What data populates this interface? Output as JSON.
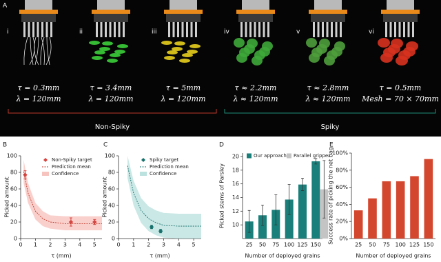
{
  "panel_a": {
    "label": "A",
    "photos": [
      {
        "numeral": "i",
        "lines": [
          "τ = 0.3mm",
          "λ = 120mm"
        ]
      },
      {
        "numeral": "ii",
        "lines": [
          "τ = 3.4mm",
          "λ = 120mm"
        ]
      },
      {
        "numeral": "iii",
        "lines": [
          "τ = 5mm",
          "λ = 120mm"
        ]
      },
      {
        "numeral": "iv",
        "lines": [
          "τ ≈ 2.2mm",
          "λ ≈ 120mm"
        ]
      },
      {
        "numeral": "v",
        "lines": [
          "τ ≈ 2.8mm",
          "λ ≈ 120mm"
        ]
      },
      {
        "numeral": "vi",
        "lines": [
          "τ = 0.5mm",
          "Mesh = 70 × 70mm"
        ]
      }
    ],
    "groups": [
      "Non-Spiky",
      "Spiky"
    ]
  },
  "chart_data": [
    {
      "type": "scatter",
      "panel": "B",
      "xlabel": "τ (mm)",
      "ylabel": "Picked amount",
      "xlim": [
        0,
        5.5
      ],
      "xticks": [
        0,
        1,
        2,
        3,
        4,
        5
      ],
      "ylim": [
        0,
        100
      ],
      "yticks": [
        0,
        20,
        40,
        60,
        80,
        100
      ],
      "series": [
        {
          "name": "Non-Spiky target",
          "color": "#d64541",
          "x": [
            0.3,
            3.4,
            5
          ],
          "values": [
            77,
            20,
            20
          ],
          "errors": [
            5,
            5,
            3
          ]
        },
        {
          "name": "Prediction mean",
          "color": "#c0392b",
          "x": [
            0.2,
            0.5,
            1,
            1.5,
            2,
            3,
            4,
            5.5
          ],
          "values": [
            81,
            55,
            33,
            24,
            20,
            18,
            18,
            18
          ]
        },
        {
          "name": "Confidence",
          "color": "#f4a9a3",
          "x": [
            0.2,
            0.5,
            1,
            1.5,
            2,
            3,
            4,
            5.5
          ],
          "upper": [
            95,
            67,
            43,
            33,
            28,
            27,
            27,
            27
          ],
          "lower": [
            67,
            43,
            23,
            15,
            12,
            10,
            10,
            10
          ]
        }
      ]
    },
    {
      "type": "scatter",
      "panel": "C",
      "xlabel": "τ (mm)",
      "ylabel": "Picked amount",
      "xlim": [
        0,
        5.5
      ],
      "xticks": [
        0,
        1,
        2,
        3,
        4,
        5
      ],
      "ylim": [
        0,
        100
      ],
      "yticks": [
        0,
        20,
        40,
        60,
        80,
        100
      ],
      "series": [
        {
          "name": "Spiky target",
          "color": "#17706b",
          "x": [
            2.2,
            2.8
          ],
          "values": [
            14,
            9
          ],
          "errors": [
            2,
            2
          ]
        },
        {
          "name": "Prediction mean",
          "color": "#17706b",
          "x": [
            0.6,
            1,
            1.5,
            2,
            2.5,
            3,
            4,
            5.5
          ],
          "values": [
            88,
            55,
            34,
            24,
            19,
            16,
            15,
            15
          ]
        },
        {
          "name": "Confidence",
          "color": "#9fd6d2",
          "x": [
            0.6,
            1,
            1.5,
            2,
            2.5,
            3,
            4,
            5.5
          ],
          "upper": [
            100,
            70,
            49,
            39,
            34,
            31,
            30,
            30
          ],
          "lower": [
            73,
            40,
            19,
            9,
            4,
            1,
            0,
            0
          ]
        }
      ]
    },
    {
      "type": "bar",
      "panel": "D",
      "xlabel": "Number of deployed grains",
      "ylabel": "Picked stems of Parsley",
      "categories": [
        "25",
        "50",
        "75",
        "100",
        "125",
        "150"
      ],
      "ylim": [
        8,
        20.5
      ],
      "yticks": [
        10,
        12,
        14,
        16,
        18,
        20
      ],
      "series": [
        {
          "name": "Our approach",
          "color": "#1a7f7a",
          "values": [
            10.5,
            11.4,
            12.2,
            13.7,
            15.9,
            19.3
          ],
          "errors": [
            1.6,
            1.5,
            2.2,
            2.2,
            0.9,
            0.4
          ]
        },
        {
          "name": "Parallel gripper",
          "color": "#c4c4c4",
          "values": [
            null,
            null,
            null,
            null,
            null,
            15.2
          ],
          "errors": [
            null,
            null,
            null,
            null,
            null,
            4.2
          ]
        }
      ]
    },
    {
      "type": "bar",
      "panel": "E",
      "xlabel": "Number of deployed grains",
      "ylabel": "Success rate of picking the net bag",
      "categories": [
        "25",
        "50",
        "75",
        "100",
        "125",
        "150"
      ],
      "color": "#d4472f",
      "values": [
        33,
        47,
        67,
        67,
        73,
        93
      ],
      "ylim": [
        0,
        100
      ],
      "yticks": [
        {
          "value": 0,
          "label": "0%"
        },
        {
          "value": 20,
          "label": "20%"
        },
        {
          "value": 40,
          "label": "40%"
        },
        {
          "value": 60,
          "label": "60%"
        },
        {
          "value": 80,
          "label": "80%"
        },
        {
          "value": 100,
          "label": "100%"
        }
      ]
    }
  ]
}
